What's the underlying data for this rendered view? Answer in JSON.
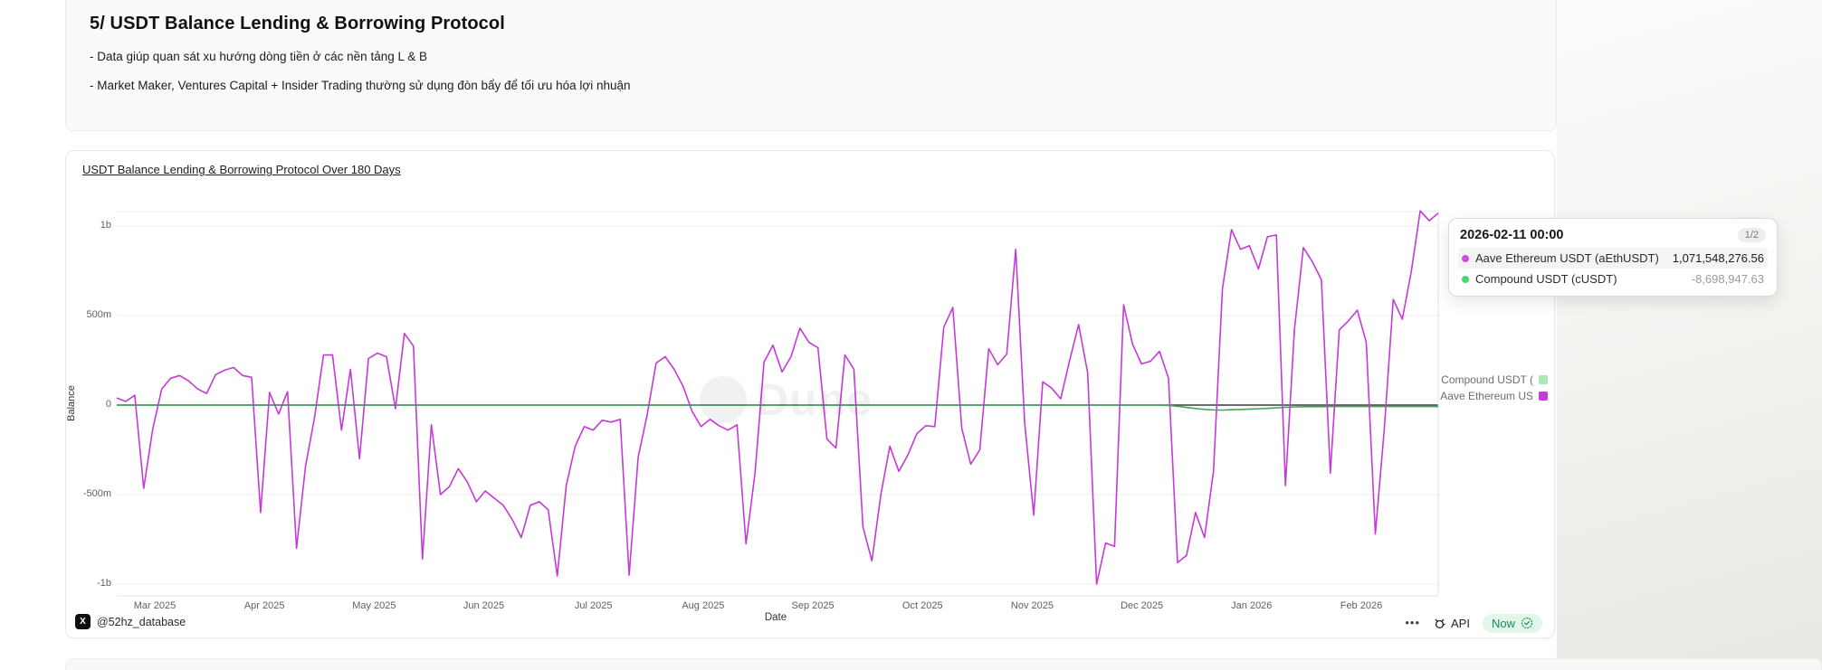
{
  "header": {
    "title": "5/ USDT Balance Lending & Borrowing Protocol",
    "bullets": [
      "- Data giúp quan sát xu hướng dòng tiền ở các nền tảng L & B",
      "- Market Maker, Ventures Capital + Insider Trading thường sử dụng đòn bẩy để tối ưu hóa lợi nhuận"
    ]
  },
  "chart_card": {
    "title": "USDT Balance Lending & Borrowing Protocol Over 180 Days",
    "watermark": "Dune",
    "attribution": "@52hz_database",
    "x_logo_glyph": "X",
    "footer": {
      "ellipsis": "•••",
      "api_label": "API",
      "now_label": "Now"
    },
    "legend": [
      {
        "label": "Compound USDT (",
        "color": "#a9e9b6"
      },
      {
        "label": "Aave Ethereum US",
        "color": "#c43cd8"
      }
    ]
  },
  "tooltip": {
    "date": "2026-02-11 00:00",
    "page_badge": "1/2",
    "rows": [
      {
        "dot_color": "#d24bdf",
        "label": "Aave Ethereum USDT (aEthUSDT)",
        "value": "1,071,548,276.56",
        "highlight": true
      },
      {
        "dot_color": "#3edd64",
        "label": "Compound USDT (cUSDT)",
        "value": "-8,698,947.63",
        "highlight": false
      }
    ]
  },
  "chart_data": {
    "type": "line",
    "title": "USDT Balance Lending & Borrowing Protocol Over 180 Days",
    "xlabel": "Date",
    "ylabel": "Balance",
    "x_ticks": [
      "Mar 2025",
      "Apr 2025",
      "May 2025",
      "Jun 2025",
      "Jul 2025",
      "Aug 2025",
      "Sep 2025",
      "Oct 2025",
      "Nov 2025",
      "Dec 2025",
      "Jan 2026",
      "Feb 2026"
    ],
    "y_ticks": [
      "1b",
      "500m",
      "0",
      "-500m",
      "-1b"
    ],
    "y_tick_values_millions": [
      1000,
      500,
      0,
      -500,
      -1000
    ],
    "ylim_millions": [
      -1100,
      1150
    ],
    "grid": true,
    "legend_position": "right",
    "unit": "millions of USDT (approximate, read from chart)",
    "series": [
      {
        "name": "Aave Ethereum USDT (aEthUSDT)",
        "color": "#c53ad7",
        "last_point": {
          "date": "2026-02-11 00:00",
          "value": 1071.55
        },
        "values": [
          40,
          20,
          55,
          -465,
          -135,
          90,
          150,
          165,
          135,
          90,
          65,
          170,
          195,
          210,
          165,
          155,
          -600,
          70,
          -50,
          75,
          -800,
          -340,
          -70,
          280,
          280,
          -140,
          200,
          -300,
          260,
          290,
          270,
          -20,
          400,
          330,
          -860,
          -110,
          -500,
          -455,
          -355,
          -430,
          -540,
          -480,
          -520,
          -560,
          -640,
          -740,
          -560,
          -540,
          -585,
          -955,
          -450,
          -230,
          -120,
          -140,
          -85,
          -95,
          -80,
          -950,
          -290,
          -55,
          235,
          270,
          200,
          105,
          -35,
          -120,
          -80,
          -115,
          -140,
          -110,
          -775,
          -380,
          240,
          335,
          185,
          270,
          430,
          350,
          320,
          -190,
          -240,
          280,
          200,
          -680,
          -870,
          -500,
          -230,
          -370,
          -280,
          -160,
          -115,
          -120,
          435,
          545,
          -130,
          -330,
          -250,
          315,
          225,
          285,
          870,
          -100,
          -615,
          130,
          95,
          35,
          250,
          450,
          180,
          -1000,
          -770,
          -790,
          560,
          340,
          230,
          245,
          300,
          150,
          -880,
          -840,
          -600,
          -740,
          -370,
          650,
          980,
          870,
          890,
          760,
          940,
          950,
          -450,
          420,
          880,
          800,
          700,
          -380,
          420,
          470,
          530,
          350,
          -720,
          -135,
          590,
          480,
          745,
          1085,
          1030,
          1072
        ]
      },
      {
        "name": "Compound USDT (cUSDT)",
        "color": "#3fa65b",
        "last_point": {
          "date": "2026-02-11 00:00",
          "value": -8.7
        },
        "values": [
          0,
          0,
          0,
          0,
          0,
          0,
          0,
          0,
          0,
          0,
          0,
          0,
          0,
          0,
          0,
          0,
          0,
          0,
          0,
          0,
          0,
          0,
          0,
          0,
          0,
          0,
          0,
          0,
          0,
          0,
          0,
          0,
          0,
          0,
          0,
          0,
          0,
          0,
          0,
          0,
          0,
          0,
          0,
          0,
          0,
          0,
          0,
          0,
          0,
          0,
          0,
          0,
          0,
          0,
          0,
          0,
          0,
          0,
          0,
          0,
          0,
          0,
          0,
          0,
          0,
          0,
          0,
          0,
          0,
          0,
          0,
          0,
          0,
          0,
          0,
          0,
          0,
          0,
          0,
          0,
          0,
          0,
          0,
          0,
          0,
          0,
          0,
          0,
          0,
          0,
          0,
          0,
          0,
          0,
          0,
          0,
          0,
          0,
          0,
          0,
          0,
          0,
          0,
          0,
          0,
          0,
          0,
          0,
          0,
          0,
          0,
          0,
          0,
          0,
          0,
          0,
          0,
          0,
          -3,
          -8,
          -14,
          -20,
          -25,
          -28,
          -28,
          -26,
          -24,
          -22,
          -20,
          -18,
          -15,
          -12,
          -10,
          -9,
          -9,
          -9,
          -8,
          -8,
          -8,
          -8,
          -8,
          -8,
          -8,
          -8,
          -8,
          -8,
          -8,
          -8,
          -8.7
        ]
      }
    ]
  }
}
